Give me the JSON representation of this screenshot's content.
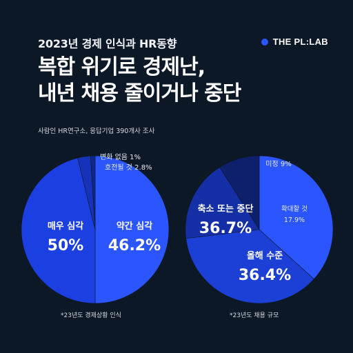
{
  "header": {
    "topline": "2023년 경제 인식과 HR동향",
    "brand": "THE PL:LAB",
    "brand_color": "#2b55ff",
    "headline_line1": "복합 위기로 경제난,",
    "headline_line2": "내년 채용 줄이거나 중단",
    "source": "사람인 HR연구소, 응답기업 390개사 조사"
  },
  "chart_data": [
    {
      "type": "pie",
      "caption": "*23년도 경제상황 인식",
      "slices": [
        {
          "label": "매우 심각",
          "value": 50,
          "value_text": "50%",
          "color": "#2a55ff"
        },
        {
          "label": "약간 심각",
          "value": 46.2,
          "value_text": "46.2%",
          "color": "#1b3fe0"
        },
        {
          "label": "호전될 것",
          "value": 2.8,
          "value_text": "2.8%",
          "color": "#1632b8"
        },
        {
          "label": "변화 없음",
          "value": 1,
          "value_text": "1%",
          "color": "#10268c"
        }
      ]
    },
    {
      "type": "pie",
      "caption": "*23년도 채용 규모",
      "slices": [
        {
          "label": "축소 또는 중단",
          "value": 36.7,
          "value_text": "36.7%",
          "color": "#2a55ff"
        },
        {
          "label": "올해 수준",
          "value": 36.4,
          "value_text": "36.4%",
          "color": "#1c40d6"
        },
        {
          "label": "확대할 것",
          "value": 17.9,
          "value_text": "17.9%",
          "color": "#1530a6"
        },
        {
          "label": "미정",
          "value": 9,
          "value_text": "9%",
          "color": "#0e1f6b"
        }
      ]
    }
  ]
}
